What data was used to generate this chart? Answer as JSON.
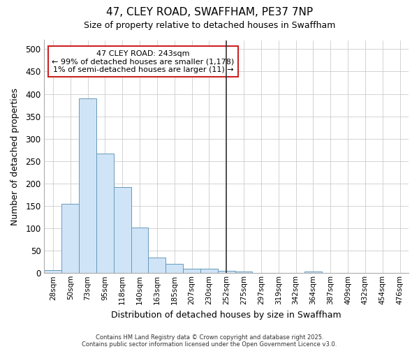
{
  "title": "47, CLEY ROAD, SWAFFHAM, PE37 7NP",
  "subtitle": "Size of property relative to detached houses in Swaffham",
  "xlabel": "Distribution of detached houses by size in Swaffham",
  "ylabel": "Number of detached properties",
  "bin_labels": [
    "28sqm",
    "50sqm",
    "73sqm",
    "95sqm",
    "118sqm",
    "140sqm",
    "163sqm",
    "185sqm",
    "207sqm",
    "230sqm",
    "252sqm",
    "275sqm",
    "297sqm",
    "319sqm",
    "342sqm",
    "364sqm",
    "387sqm",
    "409sqm",
    "432sqm",
    "454sqm",
    "476sqm"
  ],
  "bar_heights": [
    6,
    155,
    390,
    267,
    192,
    102,
    35,
    20,
    10,
    9,
    5,
    3,
    0,
    0,
    0,
    4,
    0,
    0,
    0,
    0,
    0
  ],
  "bar_color": "#d0e4f7",
  "bar_edge_color": "#6699bb",
  "ylim": [
    0,
    520
  ],
  "yticks": [
    0,
    50,
    100,
    150,
    200,
    250,
    300,
    350,
    400,
    450,
    500
  ],
  "property_line_x": 10,
  "property_line_color": "#333333",
  "annotation_title": "47 CLEY ROAD: 243sqm",
  "annotation_line1": "← 99% of detached houses are smaller (1,178)",
  "annotation_line2": "1% of semi-detached houses are larger (11) →",
  "annotation_box_color": "#ffffff",
  "annotation_box_edge": "#cc2222",
  "footnote1": "Contains HM Land Registry data © Crown copyright and database right 2025.",
  "footnote2": "Contains public sector information licensed under the Open Government Licence v3.0.",
  "background_color": "#ffffff",
  "grid_color": "#cccccc"
}
